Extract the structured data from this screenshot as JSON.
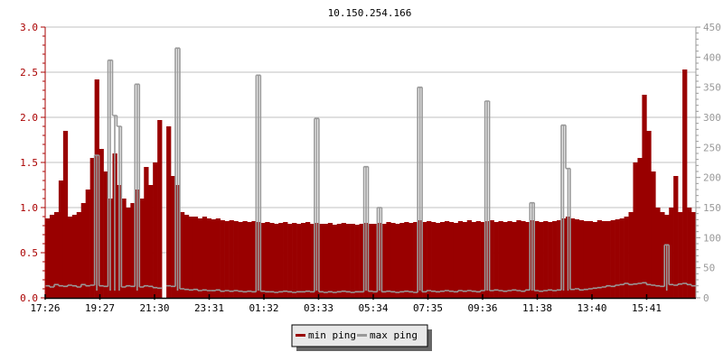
{
  "chart_data": {
    "type": "bar",
    "title": "10.150.254.166",
    "x_tick_labels": [
      "17:26",
      "19:27",
      "21:30",
      "23:31",
      "01:32",
      "03:33",
      "05:34",
      "07:35",
      "09:36",
      "11:38",
      "13:40",
      "15:41"
    ],
    "x_start": "17:26",
    "x_end": "17:26",
    "sample_interval_minutes": 10,
    "left_axis": {
      "ylim": [
        0,
        3.0
      ],
      "ticks": [
        "0.0",
        "0.5",
        "1.0",
        "1.5",
        "2.0",
        "2.5",
        "3.0"
      ],
      "color": "#aa0000"
    },
    "right_axis": {
      "ylim": [
        0,
        450
      ],
      "ticks": [
        "0",
        "50",
        "100",
        "150",
        "200",
        "250",
        "300",
        "350",
        "400",
        "450"
      ],
      "color": "#999999"
    },
    "grid": true,
    "legend_position": "bottom-center",
    "series": [
      {
        "name": "min ping",
        "axis": "left",
        "color": "#990000",
        "values": [
          0.88,
          0.92,
          0.95,
          1.3,
          1.85,
          0.9,
          0.92,
          0.95,
          1.05,
          1.2,
          1.55,
          2.42,
          1.65,
          1.4,
          1.1,
          1.6,
          1.25,
          1.1,
          1.0,
          1.05,
          1.2,
          1.1,
          1.45,
          1.25,
          1.5,
          1.97,
          null,
          1.9,
          1.35,
          1.25,
          0.95,
          0.92,
          0.9,
          0.9,
          0.88,
          0.9,
          0.88,
          0.87,
          0.88,
          0.86,
          0.85,
          0.86,
          0.85,
          0.84,
          0.85,
          0.84,
          0.85,
          0.84,
          0.83,
          0.84,
          0.83,
          0.82,
          0.83,
          0.84,
          0.82,
          0.83,
          0.82,
          0.83,
          0.84,
          0.82,
          0.83,
          0.82,
          0.82,
          0.83,
          0.81,
          0.82,
          0.83,
          0.82,
          0.82,
          0.81,
          0.82,
          0.83,
          0.82,
          0.82,
          0.83,
          0.82,
          0.84,
          0.83,
          0.82,
          0.83,
          0.84,
          0.83,
          0.84,
          0.86,
          0.84,
          0.85,
          0.84,
          0.83,
          0.84,
          0.85,
          0.84,
          0.83,
          0.85,
          0.84,
          0.86,
          0.84,
          0.85,
          0.84,
          0.85,
          0.86,
          0.84,
          0.85,
          0.84,
          0.85,
          0.84,
          0.86,
          0.85,
          0.84,
          0.86,
          0.85,
          0.84,
          0.85,
          0.84,
          0.85,
          0.86,
          0.88,
          0.9,
          0.88,
          0.87,
          0.86,
          0.85,
          0.85,
          0.84,
          0.86,
          0.85,
          0.85,
          0.86,
          0.87,
          0.88,
          0.9,
          0.95,
          1.5,
          1.55,
          2.25,
          1.85,
          1.4,
          1.0,
          0.95,
          0.92,
          1.0,
          1.35,
          0.95,
          2.53,
          1.0,
          0.95
        ]
      },
      {
        "name": "max ping",
        "axis": "right",
        "color": "#999999",
        "values": [
          20,
          18,
          22,
          20,
          19,
          21,
          20,
          18,
          22,
          20,
          21,
          237,
          20,
          19,
          395,
          303,
          285,
          18,
          20,
          19,
          355,
          18,
          20,
          19,
          17,
          16,
          null,
          20,
          19,
          415,
          15,
          14,
          13,
          14,
          12,
          13,
          12,
          12,
          13,
          11,
          12,
          11,
          12,
          11,
          10,
          11,
          10,
          370,
          11,
          10,
          10,
          9,
          10,
          11,
          10,
          9,
          10,
          10,
          11,
          10,
          298,
          10,
          9,
          10,
          9,
          10,
          11,
          10,
          9,
          10,
          10,
          218,
          11,
          10,
          150,
          10,
          11,
          10,
          9,
          10,
          11,
          10,
          9,
          350,
          10,
          12,
          11,
          10,
          11,
          12,
          11,
          10,
          12,
          11,
          12,
          11,
          10,
          12,
          327,
          12,
          13,
          12,
          11,
          12,
          13,
          12,
          11,
          13,
          158,
          12,
          11,
          12,
          13,
          12,
          13,
          287,
          215,
          14,
          15,
          13,
          14,
          15,
          16,
          17,
          18,
          20,
          19,
          21,
          22,
          24,
          22,
          23,
          24,
          25,
          22,
          21,
          20,
          19,
          88,
          22,
          21,
          23,
          24,
          22,
          20
        ]
      }
    ]
  },
  "legend": {
    "items": [
      "min ping",
      "max ping"
    ]
  }
}
